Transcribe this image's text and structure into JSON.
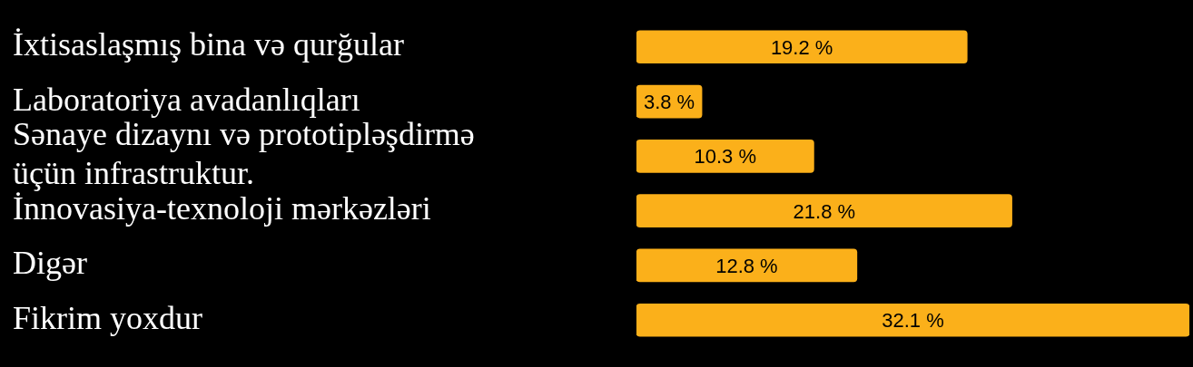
{
  "chart_data": {
    "type": "bar",
    "orientation": "horizontal",
    "tick_labels": "y",
    "legend": false,
    "categories": [
      "İxtisaslaşmış bina və qurğular",
      "Laboratoriya avadanlıqları",
      "Sənaye dizaynı və prototipləşdirmə üçün infrastruktur.",
      "İnnovasiya-texnoloji mərkəzləri",
      "Digər",
      "Fikrim yoxdur"
    ],
    "values": [
      19.2,
      3.8,
      10.3,
      21.8,
      12.8,
      32.1
    ],
    "value_labels": [
      "19.2 %",
      "3.8 %",
      "10.3 %",
      "21.8 %",
      "12.8 %",
      "32.1 %"
    ],
    "color": "#fbb01a"
  }
}
